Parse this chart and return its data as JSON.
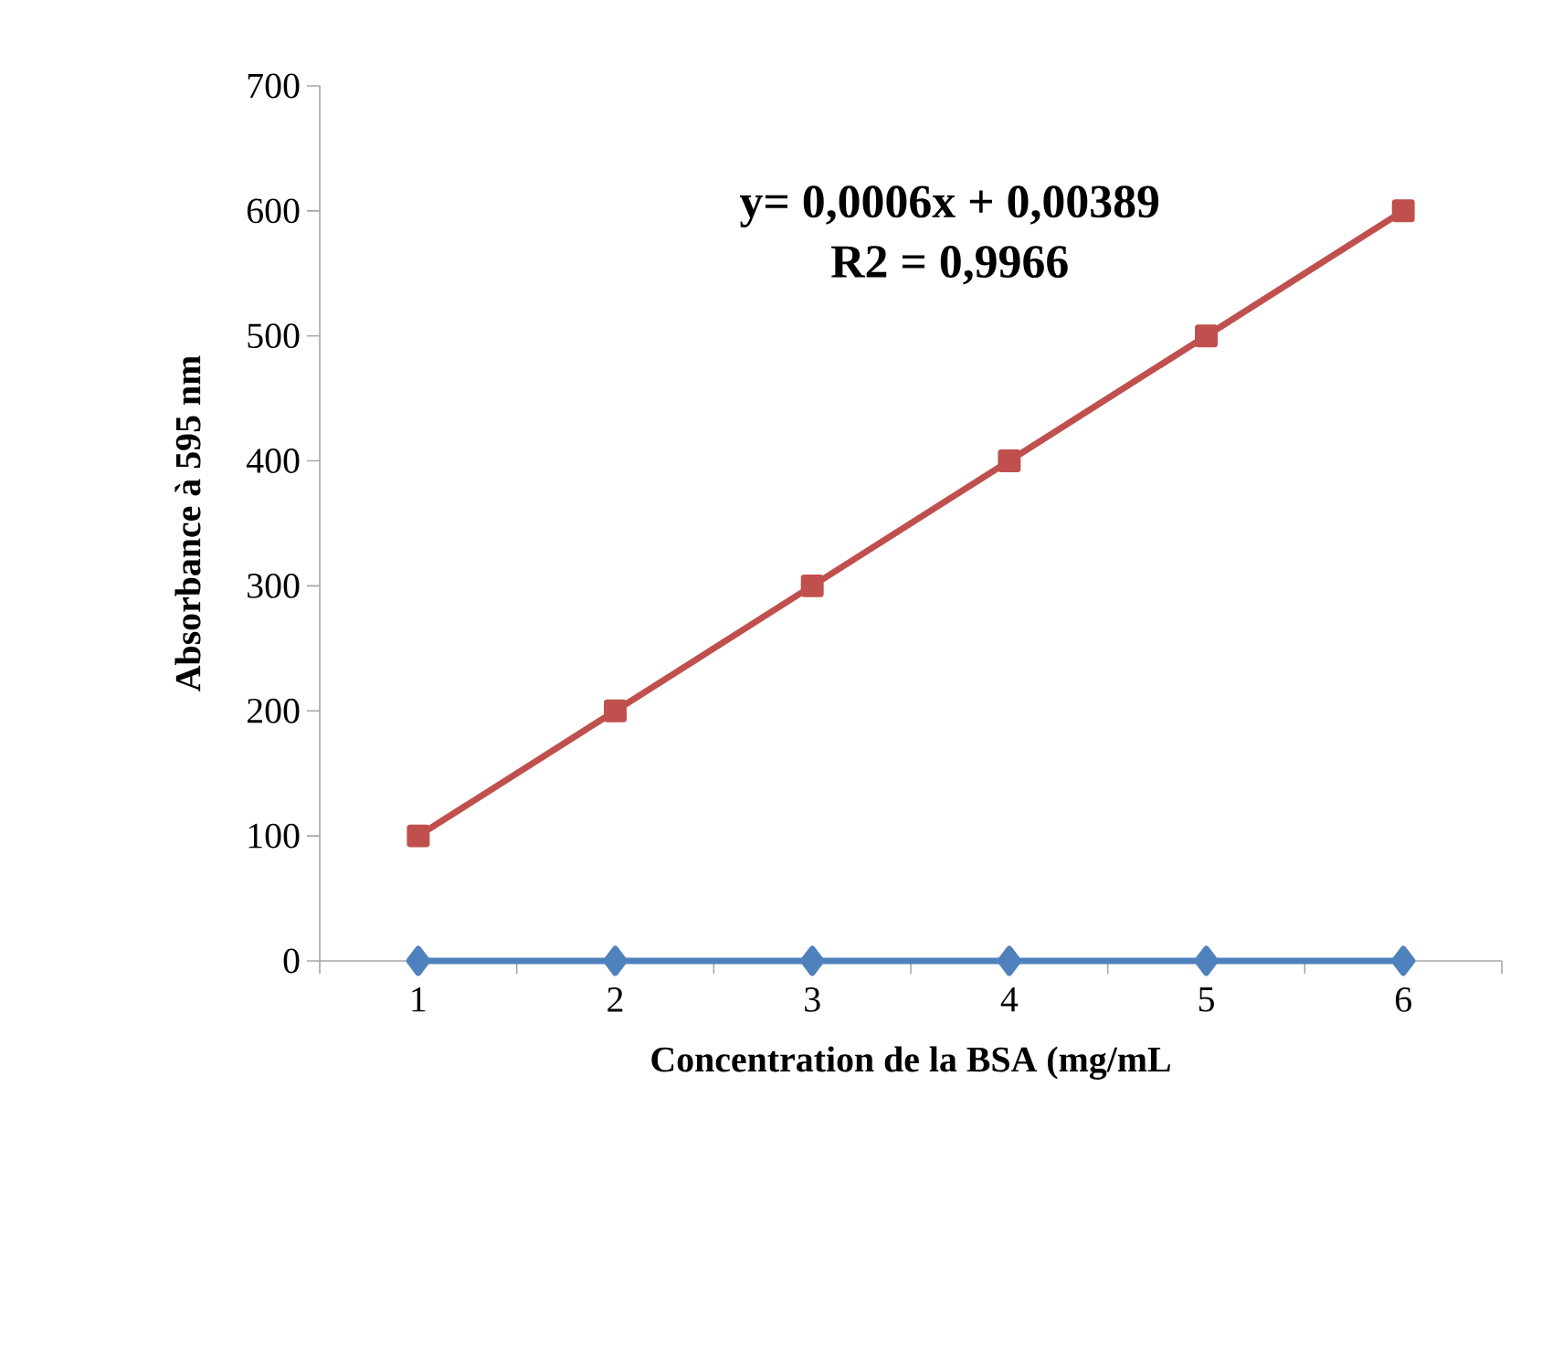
{
  "chart_data": {
    "type": "line",
    "xlabel": "Concentration de la BSA (mg/mL",
    "ylabel": "Absorbance à 595 nm",
    "categories": [
      "1",
      "2",
      "3",
      "4",
      "5",
      "6"
    ],
    "series": [
      {
        "color": "#4f81bd",
        "marker": "diamond",
        "values": [
          0,
          0,
          0,
          0,
          0,
          0
        ]
      },
      {
        "color": "#c0504d",
        "marker": "square",
        "values": [
          100,
          200,
          300,
          400,
          500,
          600
        ]
      }
    ],
    "ylim": [
      0,
      700
    ],
    "yticks": [
      0,
      100,
      200,
      300,
      400,
      500,
      600,
      700
    ],
    "grid": false,
    "annotations": [
      "y= 0,0006x + 0,00389",
      "R2 =  0,9966"
    ]
  }
}
